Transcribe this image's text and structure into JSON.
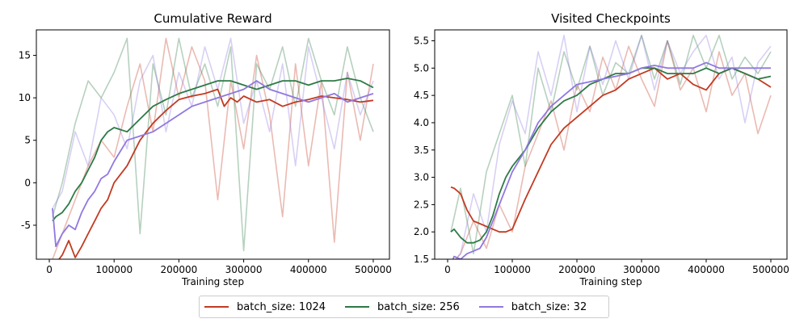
{
  "colors": {
    "batch_1024": "#c23a22",
    "batch_256": "#2d7a46",
    "batch_32": "#9078e0"
  },
  "legend": [
    {
      "label": "batch_size: 1024",
      "color": "#c23a22"
    },
    {
      "label": "batch_size: 256",
      "color": "#2d7a46"
    },
    {
      "label": "batch_size: 32",
      "color": "#9078e0"
    }
  ],
  "chart_data": [
    {
      "type": "line",
      "title": "Cumulative Reward",
      "xlabel": "Training step",
      "ylabel": "",
      "xlim": [
        -20000,
        525000
      ],
      "ylim": [
        -9,
        18
      ],
      "xticks": [
        0,
        100000,
        200000,
        300000,
        400000,
        500000
      ],
      "xtick_labels": [
        "0",
        "100000",
        "200000",
        "300000",
        "400000",
        "500000"
      ],
      "yticks": [
        -5,
        0,
        5,
        10,
        15
      ],
      "ytick_labels": [
        "-5",
        "0",
        "5",
        "10",
        "15"
      ],
      "grid": false,
      "raw_series_opacity": 0.35,
      "series": [
        {
          "name": "batch_size: 1024",
          "color": "#c23a22",
          "smoothed": {
            "x": [
              5000,
              10000,
              20000,
              30000,
              40000,
              50000,
              60000,
              70000,
              80000,
              90000,
              100000,
              120000,
              140000,
              160000,
              180000,
              200000,
              220000,
              240000,
              260000,
              270000,
              280000,
              290000,
              300000,
              320000,
              340000,
              360000,
              380000,
              400000,
              420000,
              440000,
              460000,
              480000,
              500000
            ],
            "y": [
              -9,
              -9.5,
              -8.5,
              -6.8,
              -8.8,
              -7.5,
              -6.0,
              -4.5,
              -3.0,
              -2.0,
              0.0,
              2.0,
              5.0,
              7.0,
              8.5,
              9.8,
              10.2,
              10.5,
              11.0,
              9.0,
              10.0,
              9.5,
              10.2,
              9.5,
              9.8,
              9.0,
              9.5,
              9.8,
              10.2,
              10.0,
              9.8,
              9.5,
              9.7
            ]
          },
          "raw": {
            "x": [
              5000,
              20000,
              40000,
              60000,
              80000,
              100000,
              120000,
              140000,
              160000,
              180000,
              200000,
              220000,
              240000,
              260000,
              280000,
              300000,
              320000,
              340000,
              360000,
              380000,
              400000,
              420000,
              440000,
              460000,
              480000,
              500000
            ],
            "y": [
              -9,
              -6,
              -2,
              2,
              5,
              3,
              9,
              14,
              6,
              17,
              10,
              16,
              12,
              -2,
              12,
              4,
              15,
              8,
              -4,
              14,
              2,
              12,
              -7,
              13,
              5,
              14
            ]
          }
        },
        {
          "name": "batch_size: 256",
          "color": "#2d7a46",
          "smoothed": {
            "x": [
              5000,
              10000,
              20000,
              30000,
              40000,
              50000,
              60000,
              70000,
              80000,
              90000,
              100000,
              120000,
              140000,
              160000,
              180000,
              200000,
              220000,
              240000,
              260000,
              280000,
              300000,
              320000,
              340000,
              360000,
              380000,
              400000,
              420000,
              440000,
              460000,
              480000,
              500000
            ],
            "y": [
              -4.5,
              -4.0,
              -3.5,
              -2.5,
              -1.0,
              0.0,
              1.5,
              3.0,
              5.0,
              6.0,
              6.5,
              6.0,
              7.5,
              9.0,
              9.8,
              10.5,
              11.0,
              11.5,
              12.0,
              12.0,
              11.5,
              11.0,
              11.5,
              12.0,
              12.0,
              11.5,
              12.0,
              12.0,
              12.3,
              12.0,
              11.2
            ]
          },
          "raw": {
            "x": [
              5000,
              20000,
              40000,
              60000,
              80000,
              100000,
              120000,
              140000,
              160000,
              180000,
              200000,
              220000,
              240000,
              260000,
              280000,
              300000,
              320000,
              340000,
              360000,
              380000,
              400000,
              420000,
              440000,
              460000,
              480000,
              500000
            ],
            "y": [
              -4,
              0,
              7,
              12,
              10,
              13,
              17,
              -6,
              14,
              8,
              17,
              10,
              14,
              9,
              16,
              -8,
              14,
              11,
              16,
              9,
              17,
              12,
              8,
              16,
              10,
              6
            ]
          }
        },
        {
          "name": "batch_size: 32",
          "color": "#9078e0",
          "smoothed": {
            "x": [
              5000,
              10000,
              20000,
              30000,
              40000,
              50000,
              60000,
              70000,
              80000,
              90000,
              100000,
              120000,
              140000,
              160000,
              180000,
              200000,
              220000,
              240000,
              260000,
              280000,
              300000,
              320000,
              340000,
              360000,
              380000,
              400000,
              420000,
              440000,
              460000,
              480000,
              500000
            ],
            "y": [
              -3.0,
              -7.5,
              -6.0,
              -5.0,
              -5.5,
              -3.5,
              -2.0,
              -1.0,
              0.5,
              1.0,
              2.5,
              5.0,
              5.5,
              6.0,
              7.0,
              8.0,
              9.0,
              9.5,
              10.0,
              10.5,
              11.0,
              12.0,
              11.0,
              10.5,
              10.0,
              9.5,
              10.0,
              10.5,
              9.5,
              10.0,
              10.5
            ]
          },
          "raw": {
            "x": [
              5000,
              20000,
              40000,
              60000,
              80000,
              100000,
              120000,
              140000,
              160000,
              180000,
              200000,
              220000,
              240000,
              260000,
              280000,
              300000,
              320000,
              340000,
              360000,
              380000,
              400000,
              420000,
              440000,
              460000,
              480000,
              500000
            ],
            "y": [
              -3,
              -1,
              6,
              2,
              10,
              8,
              4,
              12,
              15,
              6,
              13,
              9,
              16,
              11,
              17,
              7,
              12,
              6,
              14,
              2,
              16,
              10,
              4,
              13,
              8,
              12
            ]
          }
        }
      ]
    },
    {
      "type": "line",
      "title": "Visited Checkpoints",
      "xlabel": "Training step",
      "ylabel": "",
      "xlim": [
        -20000,
        525000
      ],
      "ylim": [
        1.5,
        5.7
      ],
      "xticks": [
        0,
        100000,
        200000,
        300000,
        400000,
        500000
      ],
      "xtick_labels": [
        "0",
        "100000",
        "200000",
        "300000",
        "400000",
        "500000"
      ],
      "yticks": [
        1.5,
        2.0,
        2.5,
        3.0,
        3.5,
        4.0,
        4.5,
        5.0,
        5.5
      ],
      "ytick_labels": [
        "1.5",
        "2.0",
        "2.5",
        "3.0",
        "3.5",
        "4.0",
        "4.5",
        "5.0",
        "5.5"
      ],
      "grid": false,
      "raw_series_opacity": 0.35,
      "series": [
        {
          "name": "batch_size: 1024",
          "color": "#c23a22",
          "smoothed": {
            "x": [
              5000,
              10000,
              20000,
              30000,
              40000,
              50000,
              60000,
              70000,
              80000,
              90000,
              100000,
              120000,
              140000,
              160000,
              180000,
              200000,
              220000,
              240000,
              260000,
              280000,
              300000,
              320000,
              340000,
              360000,
              380000,
              400000,
              420000,
              440000,
              460000,
              480000,
              500000
            ],
            "y": [
              2.82,
              2.8,
              2.7,
              2.4,
              2.2,
              2.15,
              2.1,
              2.05,
              2.0,
              2.0,
              2.05,
              2.6,
              3.1,
              3.6,
              3.9,
              4.1,
              4.3,
              4.5,
              4.6,
              4.8,
              4.9,
              5.0,
              4.8,
              4.9,
              4.7,
              4.6,
              4.9,
              5.0,
              4.9,
              4.8,
              4.65
            ]
          },
          "raw": {
            "x": [
              5000,
              20000,
              40000,
              60000,
              80000,
              100000,
              120000,
              140000,
              160000,
              180000,
              200000,
              220000,
              240000,
              260000,
              280000,
              300000,
              320000,
              340000,
              360000,
              380000,
              400000,
              420000,
              440000,
              460000,
              480000,
              500000
            ],
            "y": [
              1.4,
              1.6,
              2.2,
              1.7,
              2.5,
              2.0,
              3.2,
              3.8,
              4.4,
              3.5,
              4.7,
              4.2,
              5.2,
              4.6,
              5.4,
              4.8,
              4.3,
              5.5,
              4.6,
              5.0,
              4.2,
              5.3,
              4.5,
              4.9,
              3.8,
              4.5
            ]
          }
        },
        {
          "name": "batch_size: 256",
          "color": "#2d7a46",
          "smoothed": {
            "x": [
              5000,
              10000,
              20000,
              30000,
              40000,
              50000,
              60000,
              70000,
              80000,
              90000,
              100000,
              120000,
              140000,
              160000,
              180000,
              200000,
              220000,
              240000,
              260000,
              280000,
              300000,
              320000,
              340000,
              360000,
              380000,
              400000,
              420000,
              440000,
              460000,
              480000,
              500000
            ],
            "y": [
              2.0,
              2.05,
              1.9,
              1.8,
              1.8,
              1.85,
              2.0,
              2.3,
              2.7,
              3.0,
              3.2,
              3.5,
              3.9,
              4.2,
              4.4,
              4.5,
              4.7,
              4.8,
              4.9,
              4.9,
              5.0,
              5.0,
              4.9,
              4.9,
              4.9,
              5.0,
              4.9,
              5.0,
              4.9,
              4.8,
              4.85
            ]
          },
          "raw": {
            "x": [
              5000,
              20000,
              40000,
              60000,
              80000,
              100000,
              120000,
              140000,
              160000,
              180000,
              200000,
              220000,
              240000,
              260000,
              280000,
              300000,
              320000,
              340000,
              360000,
              380000,
              400000,
              420000,
              440000,
              460000,
              480000,
              500000
            ],
            "y": [
              2.0,
              2.8,
              1.6,
              3.1,
              3.8,
              4.5,
              3.2,
              5.0,
              4.2,
              5.3,
              4.6,
              5.4,
              4.5,
              5.1,
              4.9,
              5.6,
              4.8,
              5.5,
              4.7,
              5.6,
              5.0,
              5.6,
              4.8,
              5.2,
              4.9,
              5.3
            ]
          }
        },
        {
          "name": "batch_size: 32",
          "color": "#9078e0",
          "smoothed": {
            "x": [
              5000,
              10000,
              20000,
              30000,
              40000,
              50000,
              60000,
              70000,
              80000,
              90000,
              100000,
              120000,
              140000,
              160000,
              180000,
              200000,
              220000,
              240000,
              260000,
              280000,
              300000,
              320000,
              340000,
              360000,
              380000,
              400000,
              420000,
              440000,
              460000,
              480000,
              500000
            ],
            "y": [
              1.4,
              1.55,
              1.5,
              1.6,
              1.65,
              1.7,
              1.9,
              2.2,
              2.5,
              2.8,
              3.1,
              3.5,
              4.0,
              4.3,
              4.5,
              4.7,
              4.75,
              4.8,
              4.85,
              4.9,
              5.0,
              5.05,
              5.0,
              5.0,
              5.0,
              5.1,
              5.0,
              5.0,
              5.0,
              5.0,
              5.0
            ]
          },
          "raw": {
            "x": [
              5000,
              20000,
              40000,
              60000,
              80000,
              100000,
              120000,
              140000,
              160000,
              180000,
              200000,
              220000,
              240000,
              260000,
              280000,
              300000,
              320000,
              340000,
              360000,
              380000,
              400000,
              420000,
              440000,
              460000,
              480000,
              500000
            ],
            "y": [
              1.4,
              1.6,
              2.7,
              2.0,
              3.6,
              4.4,
              3.8,
              5.3,
              4.5,
              5.6,
              4.2,
              5.4,
              4.7,
              5.5,
              4.8,
              5.6,
              4.6,
              5.5,
              4.9,
              5.3,
              5.6,
              4.8,
              5.2,
              4.0,
              5.1,
              5.4
            ]
          }
        }
      ]
    }
  ]
}
